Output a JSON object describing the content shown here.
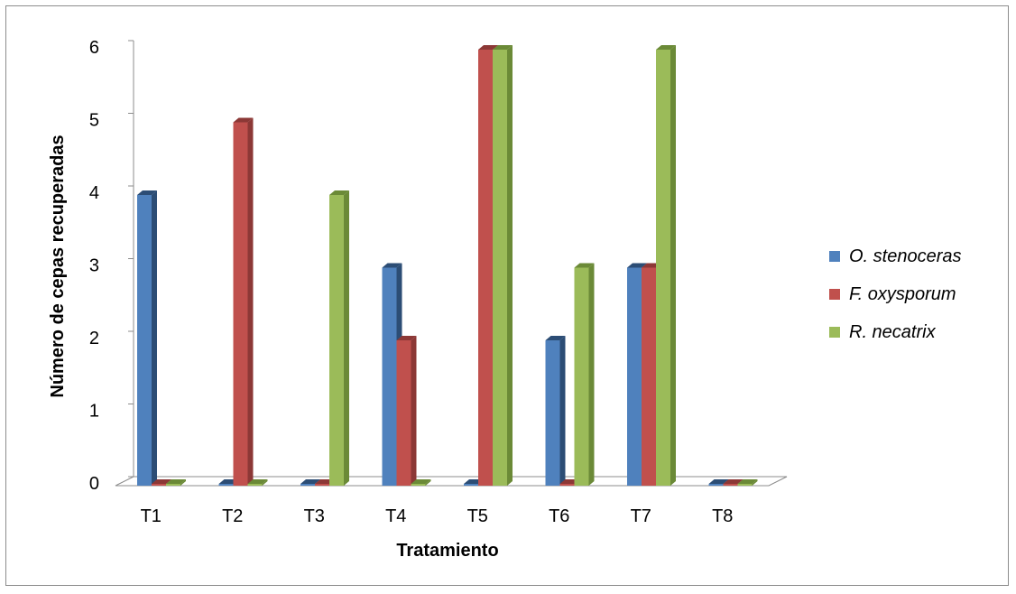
{
  "chart_data": {
    "type": "bar",
    "title": "",
    "xlabel": "Tratamiento",
    "ylabel": "Número de cepas recuperadas",
    "categories": [
      "T1",
      "T2",
      "T3",
      "T4",
      "T5",
      "T6",
      "T7",
      "T8"
    ],
    "series": [
      {
        "name": "O. stenoceras",
        "color": "#4F81BD",
        "side": "#2C4D75",
        "values": [
          4,
          0,
          0,
          3,
          0,
          2,
          3,
          0
        ]
      },
      {
        "name": "F. oxysporum",
        "color": "#C0504D",
        "side": "#8C3836",
        "values": [
          0,
          5,
          0,
          2,
          6,
          0,
          3,
          0
        ]
      },
      {
        "name": "R. necatrix",
        "color": "#9BBB59",
        "side": "#6B8A37",
        "values": [
          0,
          0,
          4,
          0,
          6,
          3,
          6,
          0
        ]
      }
    ],
    "ylim": [
      0,
      6
    ],
    "yticks": [
      0,
      1,
      2,
      3,
      4,
      5,
      6
    ],
    "grid": false,
    "legend_position": "right"
  }
}
